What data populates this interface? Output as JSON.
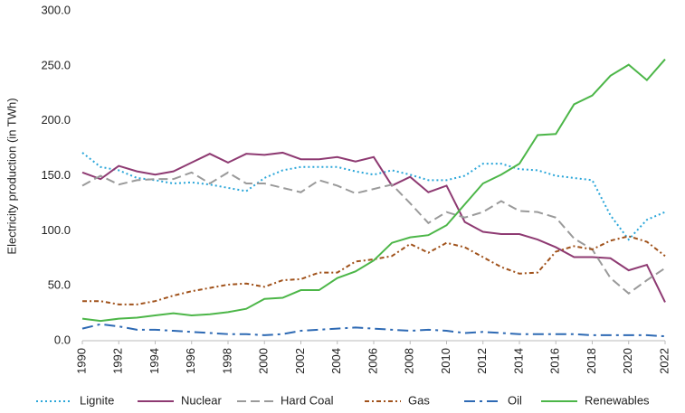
{
  "chart_data": {
    "type": "line",
    "y_label": "Electricity production (in TWh)",
    "x": [
      1990,
      1991,
      1992,
      1993,
      1994,
      1995,
      1996,
      1997,
      1998,
      1999,
      2000,
      2001,
      2002,
      2003,
      2004,
      2005,
      2006,
      2007,
      2008,
      2009,
      2010,
      2011,
      2012,
      2013,
      2014,
      2015,
      2016,
      2017,
      2018,
      2019,
      2020,
      2021,
      2022
    ],
    "xlim": [
      1990,
      2022
    ],
    "xticks": [
      1990,
      1992,
      1994,
      1996,
      1998,
      2000,
      2002,
      2004,
      2006,
      2008,
      2010,
      2012,
      2014,
      2016,
      2018,
      2020,
      2022
    ],
    "ylim": [
      0,
      300
    ],
    "yticks": [
      {
        "value": 0,
        "label": "0.0"
      },
      {
        "value": 50,
        "label": "50.0"
      },
      {
        "value": 100,
        "label": "100.0"
      },
      {
        "value": 150,
        "label": "150.0"
      },
      {
        "value": 200,
        "label": "200.0"
      },
      {
        "value": 250,
        "label": "250.0"
      },
      {
        "value": 300,
        "label": "300.0"
      }
    ],
    "grid": false,
    "legend": "bottom",
    "series": [
      {
        "name": "Lignite",
        "color": "#2aa6d9",
        "dash": "dotted",
        "values": [
          171,
          158,
          155,
          148,
          146,
          143,
          144,
          142,
          139,
          136,
          148,
          155,
          158,
          158,
          158,
          154,
          151,
          155,
          151,
          146,
          146,
          150,
          161,
          161,
          156,
          155,
          150,
          148,
          146,
          114,
          92,
          110,
          117
        ]
      },
      {
        "name": "Nuclear",
        "color": "#8e3a72",
        "dash": "solid",
        "values": [
          153,
          147,
          159,
          154,
          151,
          154,
          162,
          170,
          162,
          170,
          169,
          171,
          165,
          165,
          167,
          163,
          167,
          141,
          149,
          135,
          141,
          108,
          99,
          97,
          97,
          92,
          85,
          76,
          76,
          75,
          64,
          69,
          35
        ]
      },
      {
        "name": "Hard Coal",
        "color": "#9a9a9a",
        "dash": "dashed",
        "values": [
          141,
          150,
          142,
          146,
          147,
          147,
          153,
          143,
          153,
          143,
          143,
          139,
          135,
          146,
          141,
          134,
          138,
          142,
          125,
          107,
          117,
          112,
          117,
          127,
          118,
          117,
          112,
          93,
          83,
          57,
          43,
          55,
          66
        ]
      },
      {
        "name": "Gas",
        "color": "#a0521b",
        "dash": "dashdot",
        "values": [
          36,
          36,
          33,
          33,
          36,
          41,
          45,
          48,
          51,
          52,
          49,
          55,
          56,
          62,
          62,
          72,
          74,
          77,
          88,
          80,
          89,
          85,
          76,
          67,
          61,
          62,
          81,
          86,
          83,
          91,
          95,
          90,
          77
        ]
      },
      {
        "name": "Oil",
        "color": "#2e6ab4",
        "dash": "longdashdot",
        "values": [
          11,
          15,
          13,
          10,
          10,
          9,
          8,
          7,
          6,
          6,
          5,
          6,
          9,
          10,
          11,
          12,
          11,
          10,
          9,
          10,
          9,
          7,
          8,
          7,
          6,
          6,
          6,
          6,
          5,
          5,
          5,
          5,
          4
        ]
      },
      {
        "name": "Renewables",
        "color": "#4cb648",
        "dash": "solid",
        "values": [
          20,
          18,
          20,
          21,
          23,
          25,
          23,
          24,
          26,
          29,
          38,
          39,
          46,
          46,
          57,
          63,
          73,
          89,
          94,
          96,
          105,
          124,
          143,
          151,
          161,
          187,
          188,
          215,
          223,
          241,
          251,
          237,
          256
        ]
      }
    ]
  }
}
